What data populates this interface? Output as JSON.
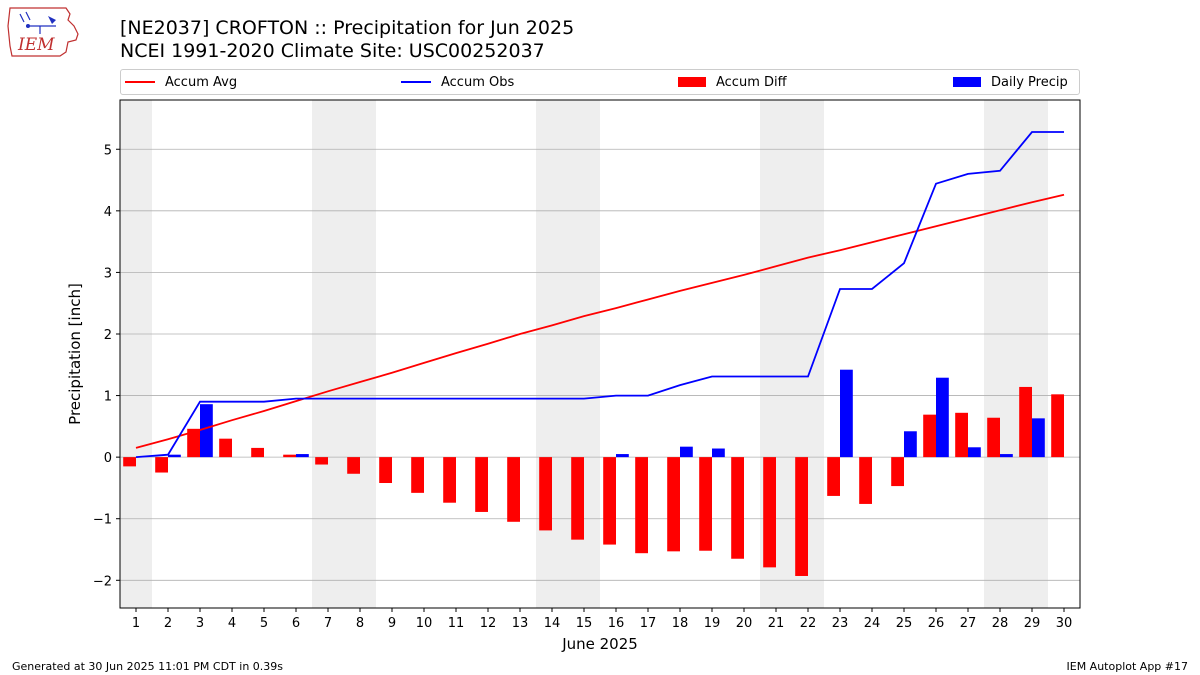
{
  "header": {
    "title_line1": "[NE2037] CROFTON :: Precipitation for Jun 2025",
    "title_line2": "NCEI 1991-2020 Climate Site: USC00252037"
  },
  "logo": {
    "text": "IEM"
  },
  "footer": {
    "left": "Generated at 30 Jun 2025 11:01 PM CDT in 0.39s",
    "right": "IEM Autoplot App #17"
  },
  "colors": {
    "accum_avg": "#ff0000",
    "accum_obs": "#0000ff",
    "accum_diff": "#ff0000",
    "daily_precip": "#0000ff",
    "weekend_shade": "#eeeeee",
    "grid": "#b0b0b0"
  },
  "chart_data": {
    "type": "bar",
    "xlabel": "June 2025",
    "ylabel": "Precipitation [inch]",
    "xlim": [
      0.5,
      30.5
    ],
    "ylim": [
      -2.45,
      5.8
    ],
    "yticks": [
      -2,
      -1,
      0,
      1,
      2,
      3,
      4,
      5
    ],
    "ytick_labels": [
      "−2",
      "−1",
      "0",
      "1",
      "2",
      "3",
      "4",
      "5"
    ],
    "grid": "horizontal",
    "legend_position": "top",
    "weekend_days": [
      1,
      7,
      8,
      14,
      15,
      21,
      22,
      28,
      29
    ],
    "x": [
      1,
      2,
      3,
      4,
      5,
      6,
      7,
      8,
      9,
      10,
      11,
      12,
      13,
      14,
      15,
      16,
      17,
      18,
      19,
      20,
      21,
      22,
      23,
      24,
      25,
      26,
      27,
      28,
      29,
      30
    ],
    "x_tick_labels": [
      "1",
      "2",
      "3",
      "4",
      "5",
      "6",
      "7",
      "8",
      "9",
      "10",
      "11",
      "12",
      "13",
      "14",
      "15",
      "16",
      "17",
      "18",
      "19",
      "20",
      "21",
      "22",
      "23",
      "24",
      "25",
      "26",
      "27",
      "28",
      "29",
      "30"
    ],
    "series": [
      {
        "name": "Accum Avg",
        "kind": "line",
        "values": [
          0.15,
          0.29,
          0.44,
          0.6,
          0.75,
          0.91,
          1.07,
          1.22,
          1.37,
          1.53,
          1.69,
          1.84,
          2.0,
          2.14,
          2.29,
          2.42,
          2.56,
          2.7,
          2.83,
          2.96,
          3.1,
          3.24,
          3.36,
          3.49,
          3.62,
          3.75,
          3.88,
          4.01,
          4.14,
          4.26
        ]
      },
      {
        "name": "Accum Obs",
        "kind": "line",
        "values": [
          0.0,
          0.04,
          0.9,
          0.9,
          0.9,
          0.95,
          0.95,
          0.95,
          0.95,
          0.95,
          0.95,
          0.95,
          0.95,
          0.95,
          0.95,
          1.0,
          1.0,
          1.17,
          1.31,
          1.31,
          1.31,
          1.31,
          2.73,
          2.73,
          3.15,
          4.44,
          4.6,
          4.65,
          5.28,
          5.28
        ]
      },
      {
        "name": "Accum Diff",
        "kind": "bar",
        "values": [
          -0.15,
          -0.25,
          0.46,
          0.3,
          0.15,
          0.04,
          -0.12,
          -0.27,
          -0.42,
          -0.58,
          -0.74,
          -0.89,
          -1.05,
          -1.19,
          -1.34,
          -1.42,
          -1.56,
          -1.53,
          -1.52,
          -1.65,
          -1.79,
          -1.93,
          -0.63,
          -0.76,
          -0.47,
          0.69,
          0.72,
          0.64,
          1.14,
          1.02
        ]
      },
      {
        "name": "Daily Precip",
        "kind": "bar",
        "values": [
          0.0,
          0.04,
          0.86,
          0.0,
          0.0,
          0.05,
          0.0,
          0.0,
          0.0,
          0.0,
          0.0,
          0.0,
          0.0,
          0.0,
          0.0,
          0.05,
          0.0,
          0.17,
          0.14,
          0.0,
          0.0,
          0.0,
          1.42,
          0.0,
          0.42,
          1.29,
          0.16,
          0.05,
          0.63,
          0.0
        ]
      }
    ]
  }
}
